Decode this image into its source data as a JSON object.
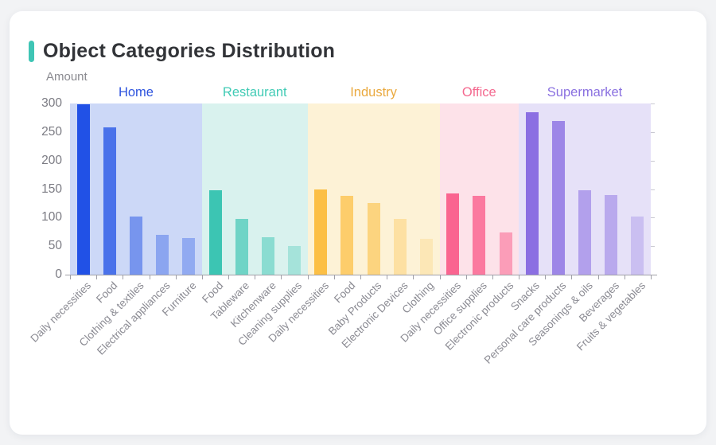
{
  "page": {
    "background_color": "#f2f3f5",
    "card_color": "#ffffff"
  },
  "header": {
    "title": "Object Categories Distribution",
    "accent_color": "#3fc5b5",
    "title_color": "#323438"
  },
  "chart_data": {
    "type": "bar",
    "title": "Object Categories Distribution",
    "xlabel": "",
    "ylabel": "Amount",
    "ylim": [
      0,
      300
    ],
    "yticks": [
      0,
      50,
      100,
      150,
      200,
      250,
      300
    ],
    "grid": false,
    "legend_position": "none",
    "axis": {
      "line_color": "#a0a0a8",
      "right_tick_color": "#c9c9d2",
      "x_label_color": "#8b8b93",
      "y_label_color": "#7b7b83"
    },
    "groups": [
      {
        "name": "Home",
        "label_color": "#2d53de",
        "bar_color": "#2151e6",
        "band_color": "#ccd8f7",
        "opacities": [
          1,
          0.76,
          0.5,
          0.38,
          0.34
        ],
        "bars": [
          {
            "label": "Daily necessities",
            "value": 298
          },
          {
            "label": "Food",
            "value": 258
          },
          {
            "label": "Clothing & textiles",
            "value": 102
          },
          {
            "label": "Electrical appliances",
            "value": 70
          },
          {
            "label": "Furniture",
            "value": 64
          }
        ]
      },
      {
        "name": "Restaurant",
        "label_color": "#41cbb5",
        "bar_color": "#3cc5b3",
        "band_color": "#d9f2ee",
        "opacities": [
          1,
          0.68,
          0.5,
          0.33
        ],
        "bars": [
          {
            "label": "Food",
            "value": 148
          },
          {
            "label": "Tableware",
            "value": 97
          },
          {
            "label": "Kitchenware",
            "value": 65
          },
          {
            "label": "Cleaning supplies",
            "value": 50
          }
        ]
      },
      {
        "name": "Industry",
        "label_color": "#eaa93e",
        "bar_color": "#fcbf45",
        "band_color": "#fdf2d6",
        "opacities": [
          1,
          0.74,
          0.6,
          0.36,
          0.22
        ],
        "bars": [
          {
            "label": "Daily necessities",
            "value": 150
          },
          {
            "label": "Food",
            "value": 138
          },
          {
            "label": "Baby Products",
            "value": 125
          },
          {
            "label": "Electronic Devices",
            "value": 98
          },
          {
            "label": "Clothing",
            "value": 63
          }
        ]
      },
      {
        "name": "Office",
        "label_color": "#f4698f",
        "bar_color": "#fa6490",
        "band_color": "#fde2e9",
        "opacities": [
          1,
          0.84,
          0.55
        ],
        "bars": [
          {
            "label": "Daily necessities",
            "value": 142
          },
          {
            "label": "Office supplies",
            "value": 138
          },
          {
            "label": "Electronic products",
            "value": 74
          }
        ]
      },
      {
        "name": "Supermarket",
        "label_color": "#8a70e0",
        "bar_color": "#8b6fe2",
        "band_color": "#e6e1f8",
        "opacities": [
          1,
          0.8,
          0.57,
          0.49,
          0.3
        ],
        "bars": [
          {
            "label": "Snacks",
            "value": 284
          },
          {
            "label": "Personal care products",
            "value": 270
          },
          {
            "label": "Seasonings & oils",
            "value": 148
          },
          {
            "label": "Beverages",
            "value": 140
          },
          {
            "label": "Fruits & vegetables",
            "value": 102
          }
        ]
      }
    ]
  }
}
